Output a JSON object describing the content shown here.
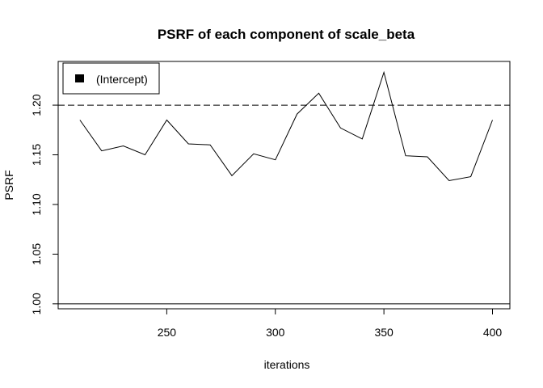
{
  "chart_data": {
    "type": "line",
    "title": "PSRF of each component of scale_beta",
    "xlabel": "iterations",
    "ylabel": "PSRF",
    "xlim": [
      200,
      408
    ],
    "ylim": [
      0.995,
      1.244
    ],
    "x_ticks": [
      250,
      300,
      350,
      400
    ],
    "y_ticks": [
      1.0,
      1.05,
      1.1,
      1.15,
      1.2
    ],
    "x_tick_labels": [
      "250",
      "300",
      "350",
      "400"
    ],
    "y_tick_labels": [
      "1.00",
      "1.05",
      "1.10",
      "1.15",
      "1.20"
    ],
    "legend": {
      "placement": "top-left",
      "entries": [
        "(Intercept)"
      ]
    },
    "reference_lines": [
      {
        "y": 1.2,
        "style": "dashed"
      },
      {
        "y": 1.0,
        "style": "solid"
      }
    ],
    "grid": false,
    "series": [
      {
        "name": "(Intercept)",
        "color": "#000000",
        "x": [
          210,
          220,
          230,
          240,
          250,
          260,
          270,
          280,
          290,
          300,
          310,
          320,
          330,
          340,
          350,
          360,
          370,
          380,
          390,
          400
        ],
        "values": [
          1.185,
          1.154,
          1.159,
          1.15,
          1.185,
          1.161,
          1.16,
          1.129,
          1.151,
          1.145,
          1.191,
          1.212,
          1.177,
          1.166,
          1.233,
          1.149,
          1.148,
          1.124,
          1.128,
          1.185
        ]
      }
    ]
  }
}
